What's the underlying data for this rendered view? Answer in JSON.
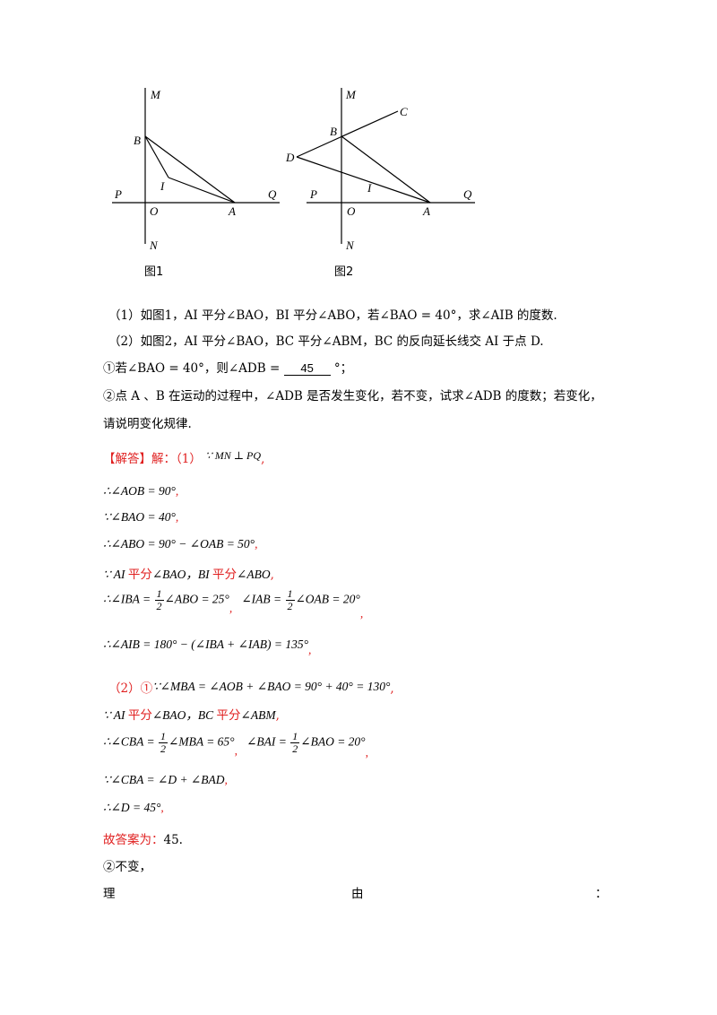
{
  "figures": {
    "fig1": {
      "caption": "图1",
      "labels": {
        "M": "M",
        "B": "B",
        "I": "I",
        "P": "P",
        "O": "O",
        "A": "A",
        "Q": "Q",
        "N": "N"
      }
    },
    "fig2": {
      "caption": "图2",
      "labels": {
        "M": "M",
        "C": "C",
        "B": "B",
        "D": "D",
        "I": "I",
        "P": "P",
        "O": "O",
        "A": "A",
        "Q": "Q",
        "N": "N"
      }
    }
  },
  "problem": {
    "q1": "（1）如图1，AI 平分∠BAO，BI 平分∠ABO，若∠BAO = 40°，求∠AIB 的度数.",
    "q2": "（2）如图2，AI 平分∠BAO，BC 平分∠ABM，BC 的反向延长线交 AI 于点 D.",
    "q2_1_prefix": "①若∠BAO = 40°，则∠ADB =",
    "q2_1_answer": "45",
    "q2_1_suffix": "°；",
    "q2_2_line1": "②点 A 、B 在运动的过程中，∠ADB 是否发生变化，若不变，试求∠ADB 的度数；若变化，",
    "q2_2_line2": "请说明变化规律."
  },
  "solution": {
    "header": "【解答】解：（1）",
    "s1": "∵ MN ⊥ PQ",
    "s2": "∴∠AOB = 90°",
    "s3": "∵∠BAO = 40°",
    "s4": "∴∠ABO = 90° − ∠OAB = 50°",
    "s5_a": "∵ AI ",
    "s5_b": "平分",
    "s5_c": "∠BAO，BI ",
    "s5_d": "平分",
    "s5_e": "∠ABO",
    "s6_a": "∴∠IBA =",
    "s6_frac_n": "1",
    "s6_frac_d": "2",
    "s6_b": "∠ABO = 25°",
    "s6_c": "∠IAB =",
    "s6_d": "∠OAB = 20°",
    "s7": "∴∠AIB = 180° − (∠IBA + ∠IAB) = 135°",
    "s8_a": "（2）①",
    "s8_b": "∵∠MBA = ∠AOB + ∠BAO = 90° + 40° = 130°",
    "s9_a": "∵ AI ",
    "s9_b": "平分",
    "s9_c": "∠BAO，BC ",
    "s9_d": "平分",
    "s9_e": "∠ABM",
    "s10_a": "∴∠CBA =",
    "s10_b": "∠MBA = 65°",
    "s10_c": "∠BAI =",
    "s10_d": "∠BAO = 20°",
    "s11": "∵∠CBA = ∠D + ∠BAD",
    "s12": "∴∠D = 45°",
    "s13_a": "故答案为：",
    "s13_b": "45.",
    "s14": "②不变，",
    "s15_a": "理",
    "s15_b": "由",
    "s15_c": "：",
    "comma": ","
  },
  "colors": {
    "accent_red": "#e02020",
    "text": "#000000"
  }
}
